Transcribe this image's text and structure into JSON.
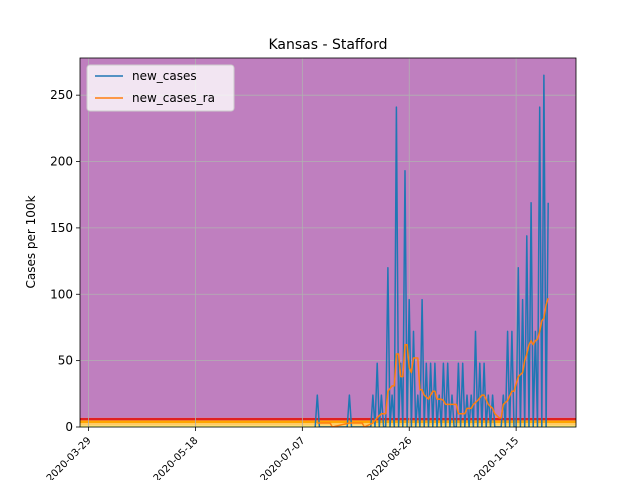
{
  "chart_data": {
    "type": "line",
    "title": "Kansas - Stafford",
    "xlabel": "",
    "ylabel": "Cases per 100k",
    "xlim": [
      "2020-03-25",
      "2020-11-12"
    ],
    "ylim": [
      0,
      278
    ],
    "grid": true,
    "legend_position": "top-left",
    "x_ticks": [
      "2020-03-29",
      "2020-05-18",
      "2020-07-07",
      "2020-08-26",
      "2020-10-15"
    ],
    "y_ticks": [
      0,
      50,
      100,
      150,
      200,
      250
    ],
    "background_bands": [
      {
        "from": 0,
        "to": 1,
        "color": "#ffff66"
      },
      {
        "from": 1,
        "to": 3,
        "color": "#ffcc66"
      },
      {
        "from": 3,
        "to": 5,
        "color": "#ffa500"
      },
      {
        "from": 5,
        "to": 7,
        "color": "#e02020"
      },
      {
        "from": 7,
        "to": 278,
        "color": "#bf7fbf"
      }
    ],
    "series": [
      {
        "name": "new_cases",
        "color": "#1f77b4",
        "points": [
          [
            "2020-07-13",
            0
          ],
          [
            "2020-07-14",
            24
          ],
          [
            "2020-07-15",
            0
          ],
          [
            "2020-07-28",
            0
          ],
          [
            "2020-07-29",
            24
          ],
          [
            "2020-07-30",
            0
          ],
          [
            "2020-08-08",
            0
          ],
          [
            "2020-08-09",
            24
          ],
          [
            "2020-08-10",
            0
          ],
          [
            "2020-08-11",
            48
          ],
          [
            "2020-08-12",
            0
          ],
          [
            "2020-08-13",
            24
          ],
          [
            "2020-08-14",
            0
          ],
          [
            "2020-08-15",
            0
          ],
          [
            "2020-08-16",
            120
          ],
          [
            "2020-08-17",
            0
          ],
          [
            "2020-08-18",
            24
          ],
          [
            "2020-08-19",
            0
          ],
          [
            "2020-08-20",
            241
          ],
          [
            "2020-08-21",
            0
          ],
          [
            "2020-08-22",
            48
          ],
          [
            "2020-08-23",
            0
          ],
          [
            "2020-08-24",
            193
          ],
          [
            "2020-08-25",
            0
          ],
          [
            "2020-08-26",
            96
          ],
          [
            "2020-08-27",
            0
          ],
          [
            "2020-08-28",
            72
          ],
          [
            "2020-08-29",
            0
          ],
          [
            "2020-08-30",
            24
          ],
          [
            "2020-08-31",
            0
          ],
          [
            "2020-09-01",
            96
          ],
          [
            "2020-09-02",
            0
          ],
          [
            "2020-09-03",
            48
          ],
          [
            "2020-09-04",
            0
          ],
          [
            "2020-09-05",
            48
          ],
          [
            "2020-09-06",
            0
          ],
          [
            "2020-09-07",
            48
          ],
          [
            "2020-09-08",
            0
          ],
          [
            "2020-09-09",
            24
          ],
          [
            "2020-09-10",
            0
          ],
          [
            "2020-09-11",
            48
          ],
          [
            "2020-09-12",
            0
          ],
          [
            "2020-09-13",
            48
          ],
          [
            "2020-09-14",
            0
          ],
          [
            "2020-09-15",
            24
          ],
          [
            "2020-09-16",
            0
          ],
          [
            "2020-09-17",
            0
          ],
          [
            "2020-09-18",
            48
          ],
          [
            "2020-09-19",
            0
          ],
          [
            "2020-09-20",
            48
          ],
          [
            "2020-09-21",
            0
          ],
          [
            "2020-09-22",
            24
          ],
          [
            "2020-09-23",
            0
          ],
          [
            "2020-09-24",
            24
          ],
          [
            "2020-09-25",
            0
          ],
          [
            "2020-09-26",
            72
          ],
          [
            "2020-09-27",
            0
          ],
          [
            "2020-09-28",
            48
          ],
          [
            "2020-09-29",
            0
          ],
          [
            "2020-09-30",
            48
          ],
          [
            "2020-10-01",
            0
          ],
          [
            "2020-10-02",
            24
          ],
          [
            "2020-10-03",
            0
          ],
          [
            "2020-10-04",
            24
          ],
          [
            "2020-10-05",
            0
          ],
          [
            "2020-10-06",
            0
          ],
          [
            "2020-10-07",
            0
          ],
          [
            "2020-10-08",
            0
          ],
          [
            "2020-10-09",
            24
          ],
          [
            "2020-10-10",
            0
          ],
          [
            "2020-10-11",
            72
          ],
          [
            "2020-10-12",
            0
          ],
          [
            "2020-10-13",
            72
          ],
          [
            "2020-10-14",
            0
          ],
          [
            "2020-10-15",
            0
          ],
          [
            "2020-10-16",
            120
          ],
          [
            "2020-10-17",
            0
          ],
          [
            "2020-10-18",
            96
          ],
          [
            "2020-10-19",
            0
          ],
          [
            "2020-10-20",
            144
          ],
          [
            "2020-10-21",
            0
          ],
          [
            "2020-10-22",
            169
          ],
          [
            "2020-10-23",
            0
          ],
          [
            "2020-10-24",
            72
          ],
          [
            "2020-10-25",
            0
          ],
          [
            "2020-10-26",
            241
          ],
          [
            "2020-10-27",
            0
          ],
          [
            "2020-10-28",
            265
          ],
          [
            "2020-10-29",
            0
          ],
          [
            "2020-10-30",
            169
          ]
        ]
      },
      {
        "name": "new_cases_ra",
        "color": "#ff7f0e",
        "points": [
          [
            "2020-07-14",
            3
          ],
          [
            "2020-07-20",
            3
          ],
          [
            "2020-07-21",
            0
          ],
          [
            "2020-07-29",
            3
          ],
          [
            "2020-08-04",
            3
          ],
          [
            "2020-08-05",
            0
          ],
          [
            "2020-08-09",
            3
          ],
          [
            "2020-08-11",
            7
          ],
          [
            "2020-08-13",
            10
          ],
          [
            "2020-08-15",
            10
          ],
          [
            "2020-08-16",
            27
          ],
          [
            "2020-08-18",
            31
          ],
          [
            "2020-08-19",
            31
          ],
          [
            "2020-08-20",
            55
          ],
          [
            "2020-08-21",
            55
          ],
          [
            "2020-08-22",
            38
          ],
          [
            "2020-08-23",
            38
          ],
          [
            "2020-08-24",
            62
          ],
          [
            "2020-08-25",
            62
          ],
          [
            "2020-08-26",
            45
          ],
          [
            "2020-08-27",
            41
          ],
          [
            "2020-08-28",
            52
          ],
          [
            "2020-08-30",
            52
          ],
          [
            "2020-08-31",
            28
          ],
          [
            "2020-09-01",
            28
          ],
          [
            "2020-09-02",
            24
          ],
          [
            "2020-09-04",
            21
          ],
          [
            "2020-09-05",
            24
          ],
          [
            "2020-09-06",
            27
          ],
          [
            "2020-09-07",
            27
          ],
          [
            "2020-09-08",
            21
          ],
          [
            "2020-09-10",
            21
          ],
          [
            "2020-09-11",
            20
          ],
          [
            "2020-09-12",
            17
          ],
          [
            "2020-09-14",
            17
          ],
          [
            "2020-09-15",
            17
          ],
          [
            "2020-09-17",
            17
          ],
          [
            "2020-09-18",
            10
          ],
          [
            "2020-09-21",
            10
          ],
          [
            "2020-09-22",
            14
          ],
          [
            "2020-09-24",
            14
          ],
          [
            "2020-09-25",
            17
          ],
          [
            "2020-09-27",
            20
          ],
          [
            "2020-09-29",
            24
          ],
          [
            "2020-09-30",
            24
          ],
          [
            "2020-10-02",
            17
          ],
          [
            "2020-10-04",
            14
          ],
          [
            "2020-10-05",
            10
          ],
          [
            "2020-10-07",
            7
          ],
          [
            "2020-10-08",
            7
          ],
          [
            "2020-10-09",
            17
          ],
          [
            "2020-10-11",
            20
          ],
          [
            "2020-10-13",
            27
          ],
          [
            "2020-10-14",
            27
          ],
          [
            "2020-10-16",
            38
          ],
          [
            "2020-10-18",
            41
          ],
          [
            "2020-10-19",
            50
          ],
          [
            "2020-10-20",
            55
          ],
          [
            "2020-10-21",
            62
          ],
          [
            "2020-10-22",
            65
          ],
          [
            "2020-10-23",
            62
          ],
          [
            "2020-10-24",
            65
          ],
          [
            "2020-10-25",
            66
          ],
          [
            "2020-10-26",
            72
          ],
          [
            "2020-10-27",
            80
          ],
          [
            "2020-10-28",
            82
          ],
          [
            "2020-10-29",
            92
          ],
          [
            "2020-10-30",
            97
          ]
        ]
      }
    ]
  }
}
